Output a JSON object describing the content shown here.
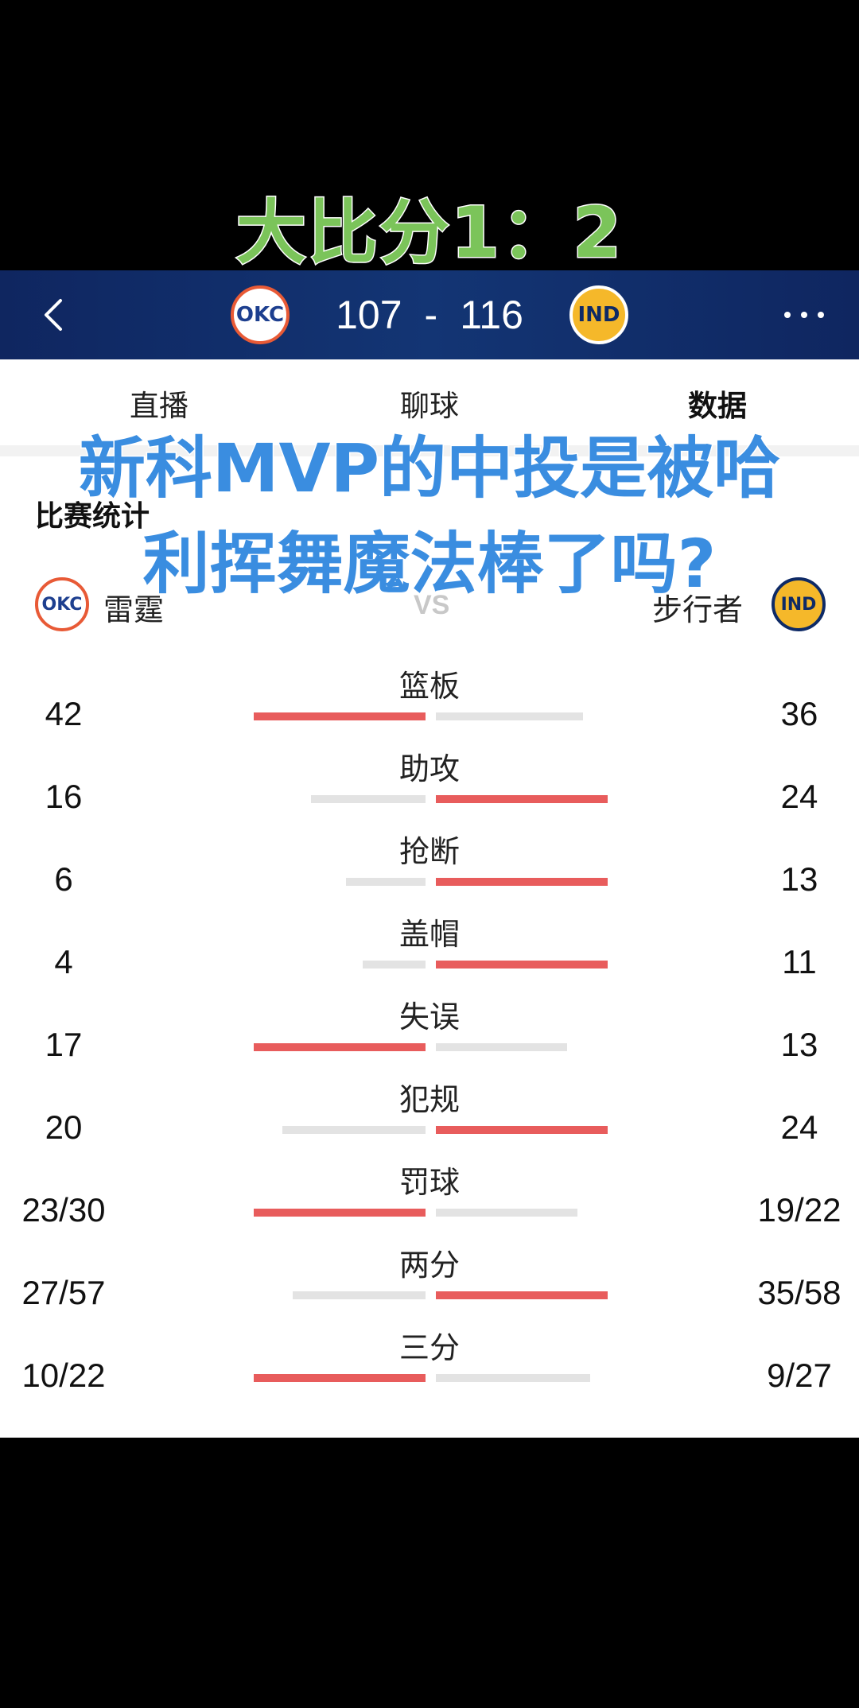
{
  "overlay": {
    "top_caption": "大比分1：2",
    "line1": "新科MVP的中投是被哈",
    "line2": "利挥舞魔法棒了吗?"
  },
  "header": {
    "home_team_logo": "OKC",
    "away_team_logo": "IND",
    "home_score": "107",
    "separator": "-",
    "away_score": "116",
    "back_icon": "chevron-left-icon",
    "more_icon": "ellipsis-icon"
  },
  "tabs": [
    {
      "label": "直播",
      "active": false
    },
    {
      "label": "聊球",
      "active": false
    },
    {
      "label": "数据",
      "active": true
    }
  ],
  "section": {
    "title": "比赛统计",
    "home_team": "雷霆",
    "away_team": "步行者",
    "vs": "VS"
  },
  "colors": {
    "bar_highlight": "#e85c5c",
    "bar_muted": "#e3e3e3",
    "header_bg": "#133574"
  },
  "stats": [
    {
      "label": "篮板",
      "home": "42",
      "away": "36",
      "home_value": 42,
      "away_value": 36
    },
    {
      "label": "助攻",
      "home": "16",
      "away": "24",
      "home_value": 16,
      "away_value": 24
    },
    {
      "label": "抢断",
      "home": "6",
      "away": "13",
      "home_value": 6,
      "away_value": 13
    },
    {
      "label": "盖帽",
      "home": "4",
      "away": "11",
      "home_value": 4,
      "away_value": 11
    },
    {
      "label": "失误",
      "home": "17",
      "away": "13",
      "home_value": 17,
      "away_value": 13
    },
    {
      "label": "犯规",
      "home": "20",
      "away": "24",
      "home_value": 20,
      "away_value": 24
    },
    {
      "label": "罚球",
      "home": "23/30",
      "away": "19/22",
      "home_value": 23,
      "away_value": 19
    },
    {
      "label": "两分",
      "home": "27/57",
      "away": "35/58",
      "home_value": 27,
      "away_value": 35
    },
    {
      "label": "三分",
      "home": "10/22",
      "away": "9/27",
      "home_value": 10,
      "away_value": 9
    }
  ]
}
